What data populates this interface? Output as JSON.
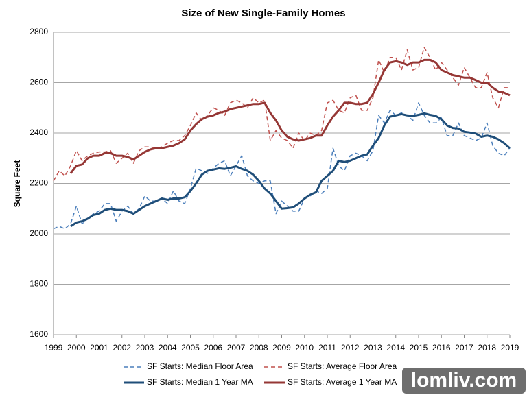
{
  "chart_data": {
    "type": "line",
    "title": "Size of New Single-Family Homes",
    "y_label": "Square Feet",
    "categories": [
      "1999",
      null,
      null,
      null,
      "2000",
      null,
      null,
      null,
      "2001",
      null,
      null,
      null,
      "2002",
      null,
      null,
      null,
      "2003",
      null,
      null,
      null,
      "2004",
      null,
      null,
      null,
      "2005",
      null,
      null,
      null,
      "2006",
      null,
      null,
      null,
      "2007",
      null,
      null,
      null,
      "2008",
      null,
      null,
      null,
      "2009",
      null,
      null,
      null,
      "2010",
      null,
      null,
      null,
      "2011",
      null,
      null,
      null,
      "2012",
      null,
      null,
      null,
      "2013",
      null,
      null,
      null,
      "2014",
      null,
      null,
      null,
      "2015",
      null,
      null,
      null,
      "2016",
      null,
      null,
      null,
      "2017",
      null,
      null,
      null,
      "2018",
      null,
      null,
      null,
      "2019"
    ],
    "ylim": [
      1600,
      2800
    ],
    "yticks": [
      1600,
      1800,
      2000,
      2200,
      2400,
      2600,
      2800
    ],
    "grid": true,
    "series": [
      {
        "name": "SF Starts: Median Floor Area",
        "color": "#4a7ebb",
        "dashed": true,
        "width": 1.5,
        "values": [
          2020,
          2030,
          2020,
          2040,
          2110,
          2040,
          2060,
          2080,
          2090,
          2120,
          2120,
          2050,
          2090,
          2110,
          2080,
          2100,
          2150,
          2130,
          2130,
          2140,
          2120,
          2170,
          2130,
          2120,
          2180,
          2260,
          2250,
          2240,
          2260,
          2280,
          2290,
          2230,
          2270,
          2310,
          2230,
          2210,
          2200,
          2210,
          2210,
          2080,
          2130,
          2110,
          2090,
          2090,
          2140,
          2150,
          2170,
          2160,
          2180,
          2340,
          2270,
          2250,
          2310,
          2320,
          2310,
          2290,
          2330,
          2470,
          2440,
          2490,
          2470,
          2480,
          2470,
          2450,
          2520,
          2470,
          2440,
          2440,
          2460,
          2390,
          2390,
          2440,
          2390,
          2380,
          2370,
          2380,
          2440,
          2350,
          2320,
          2310,
          2340
        ]
      },
      {
        "name": "SF Starts: Average Floor Area",
        "color": "#c0504d",
        "dashed": true,
        "width": 1.5,
        "values": [
          2210,
          2250,
          2230,
          2270,
          2330,
          2290,
          2310,
          2320,
          2325,
          2325,
          2330,
          2280,
          2300,
          2320,
          2280,
          2330,
          2345,
          2345,
          2340,
          2345,
          2360,
          2370,
          2370,
          2390,
          2430,
          2480,
          2450,
          2470,
          2500,
          2490,
          2470,
          2520,
          2530,
          2520,
          2500,
          2540,
          2520,
          2530,
          2370,
          2410,
          2380,
          2370,
          2340,
          2400,
          2370,
          2400,
          2390,
          2410,
          2520,
          2530,
          2490,
          2480,
          2540,
          2550,
          2490,
          2490,
          2540,
          2690,
          2640,
          2700,
          2700,
          2650,
          2730,
          2650,
          2660,
          2740,
          2700,
          2650,
          2680,
          2650,
          2620,
          2590,
          2660,
          2620,
          2580,
          2580,
          2640,
          2540,
          2500,
          2580,
          2580
        ]
      },
      {
        "name": "SF Starts: Median 1 Year MA",
        "color": "#1f4e79",
        "dashed": false,
        "width": 3,
        "values": [
          null,
          null,
          null,
          2030,
          2045,
          2050,
          2060,
          2075,
          2080,
          2095,
          2100,
          2095,
          2095,
          2090,
          2080,
          2095,
          2110,
          2120,
          2130,
          2140,
          2135,
          2140,
          2140,
          2145,
          2170,
          2200,
          2235,
          2250,
          2255,
          2260,
          2258,
          2262,
          2268,
          2258,
          2250,
          2235,
          2210,
          2180,
          2160,
          2130,
          2100,
          2102,
          2105,
          2120,
          2140,
          2155,
          2165,
          2210,
          2230,
          2250,
          2290,
          2285,
          2290,
          2300,
          2310,
          2315,
          2350,
          2380,
          2430,
          2465,
          2470,
          2475,
          2470,
          2468,
          2472,
          2478,
          2472,
          2468,
          2455,
          2430,
          2420,
          2418,
          2405,
          2402,
          2398,
          2385,
          2390,
          2385,
          2375,
          2360,
          2340
        ]
      },
      {
        "name": "SF Starts: Average 1 Year MA",
        "color": "#953735",
        "dashed": false,
        "width": 3,
        "values": [
          null,
          null,
          null,
          2240,
          2270,
          2275,
          2300,
          2310,
          2310,
          2320,
          2320,
          2310,
          2310,
          2305,
          2295,
          2310,
          2325,
          2335,
          2340,
          2340,
          2345,
          2350,
          2360,
          2375,
          2410,
          2435,
          2455,
          2465,
          2470,
          2480,
          2485,
          2495,
          2500,
          2505,
          2510,
          2515,
          2515,
          2520,
          2480,
          2450,
          2410,
          2385,
          2375,
          2370,
          2375,
          2380,
          2390,
          2390,
          2430,
          2465,
          2490,
          2520,
          2520,
          2515,
          2515,
          2520,
          2555,
          2600,
          2650,
          2680,
          2685,
          2680,
          2670,
          2680,
          2680,
          2690,
          2690,
          2680,
          2650,
          2640,
          2630,
          2625,
          2620,
          2620,
          2610,
          2600,
          2600,
          2580,
          2565,
          2560,
          2550
        ]
      }
    ]
  },
  "watermark": "lomliv.com"
}
